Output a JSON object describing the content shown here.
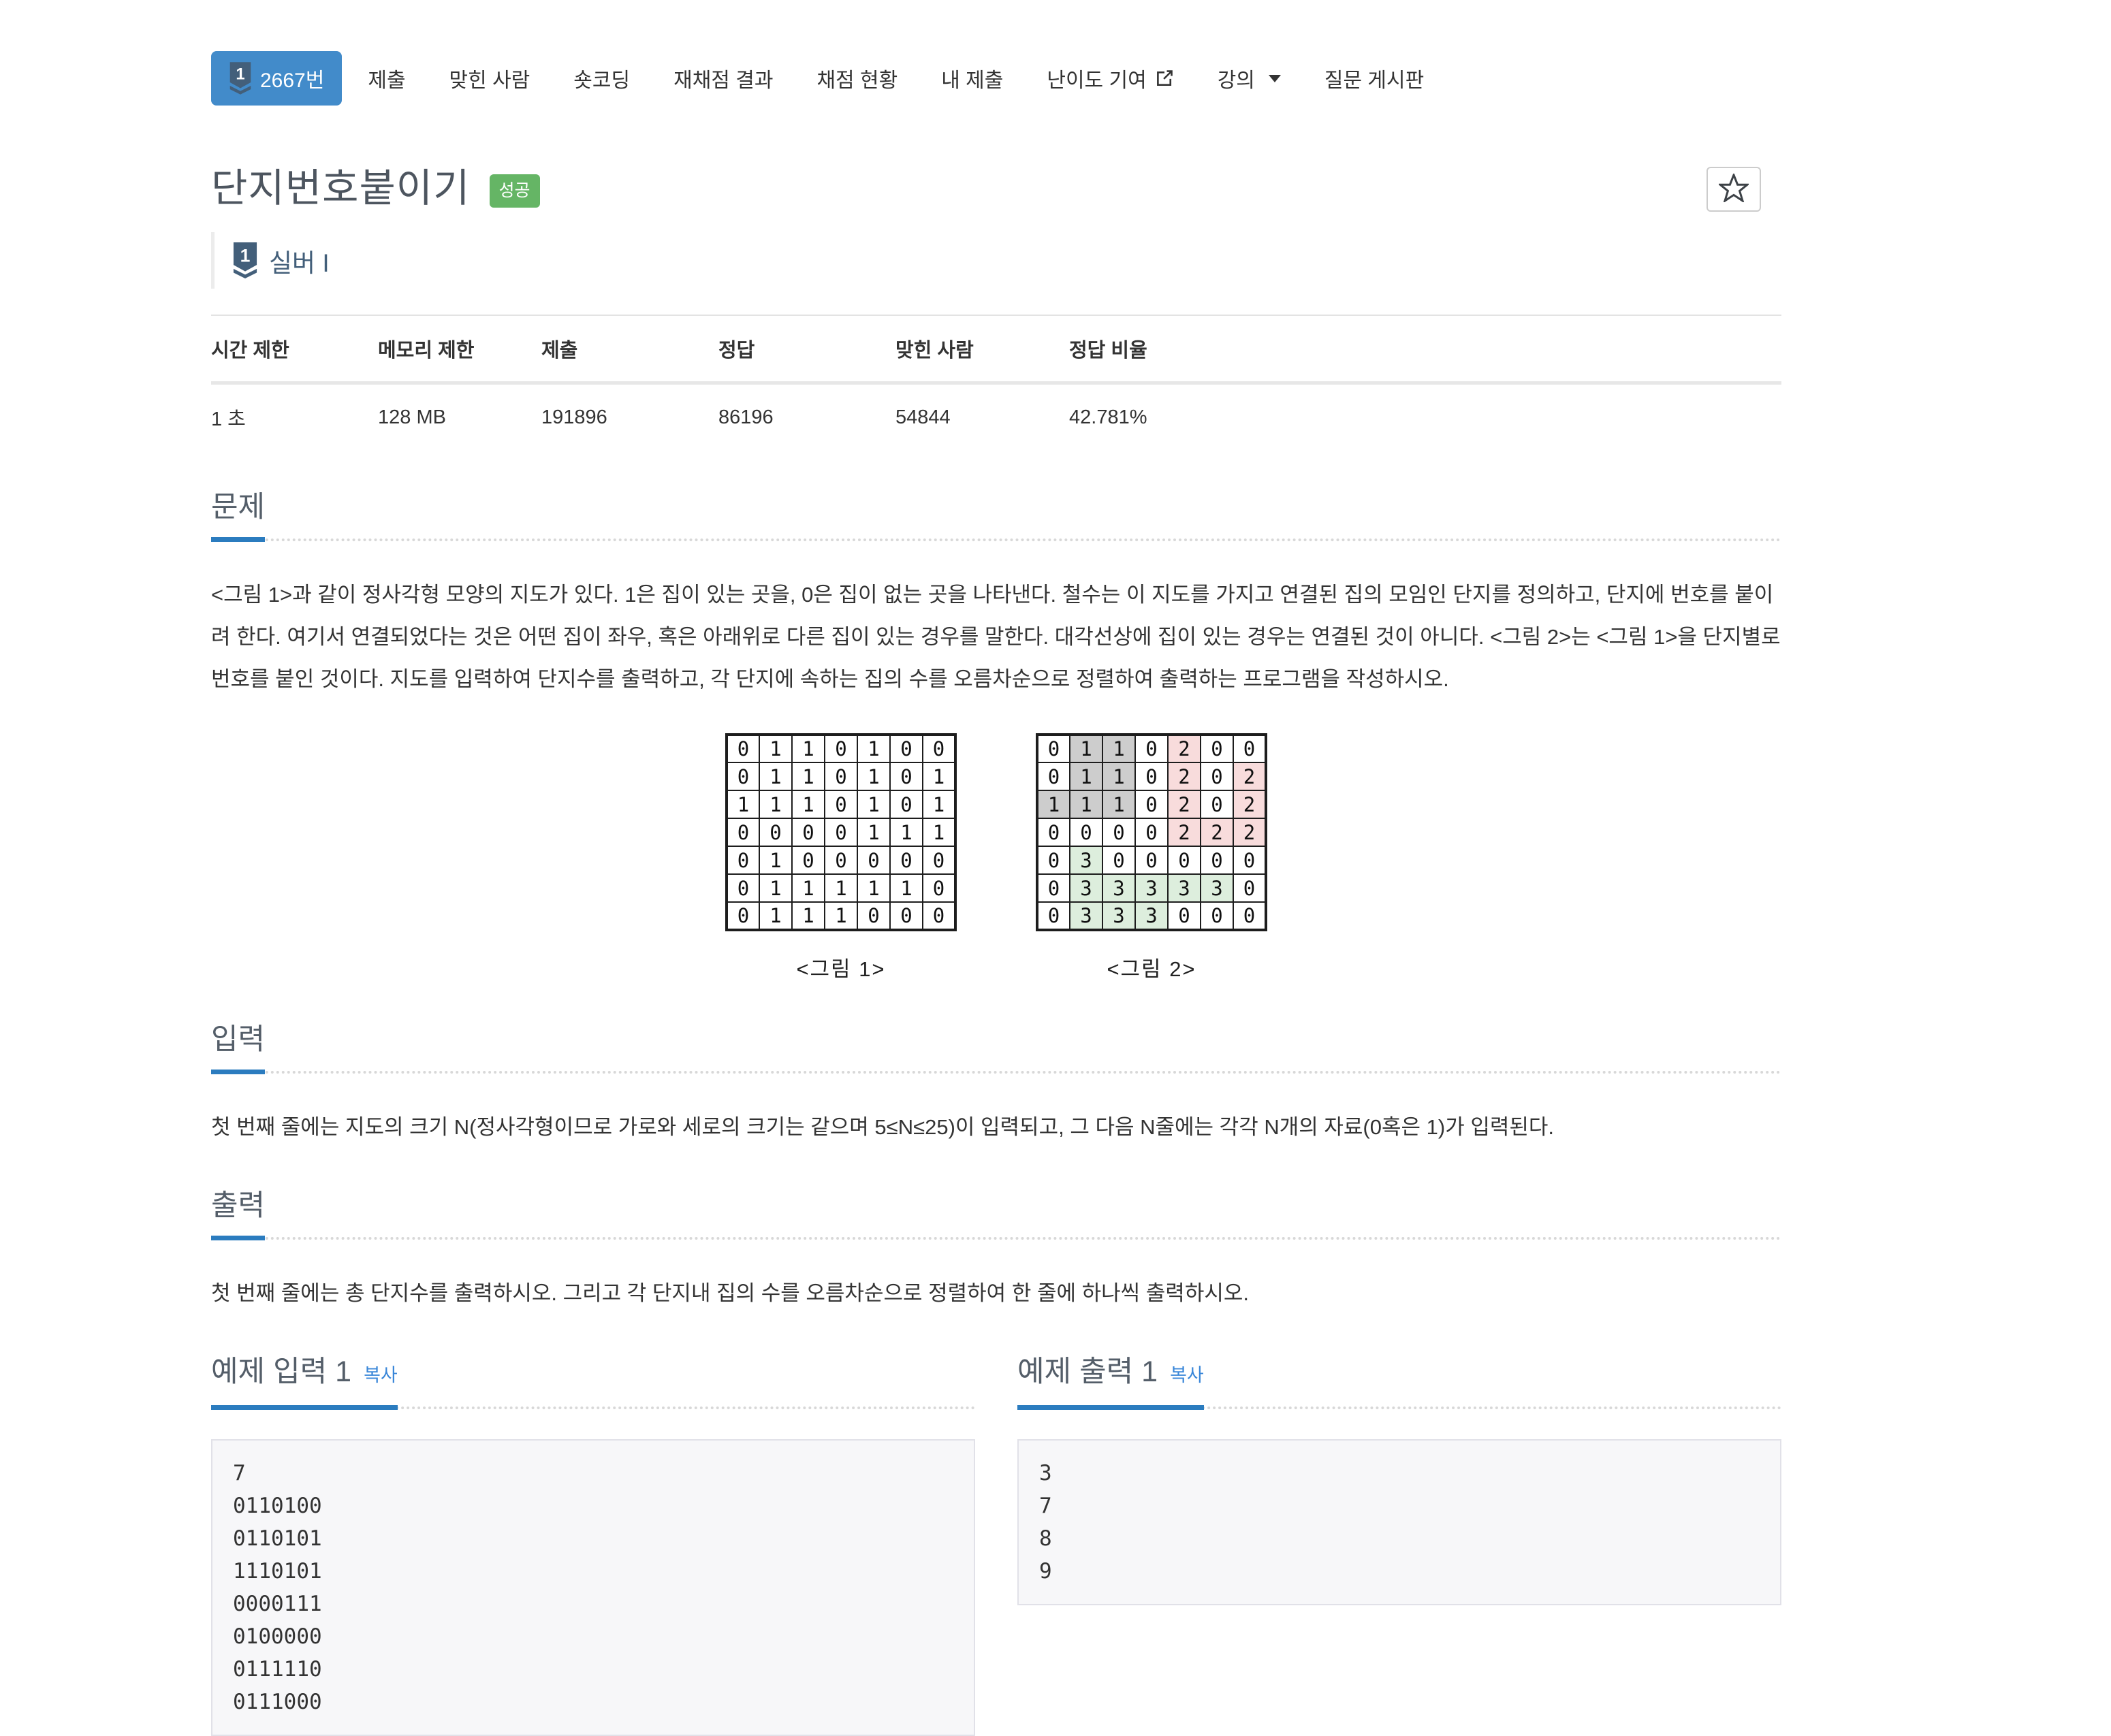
{
  "colors": {
    "active_tab_bg": "#428bca",
    "headline_underline": "#2b7cbf",
    "link_blue": "#3a87d9",
    "success_green": "#65b565",
    "tier_silver": "#435f7a",
    "grid_group_1": "#cdcdcd",
    "grid_group_2": "#f8dcdc",
    "grid_group_3": "#ddeedd"
  },
  "nav": {
    "items": [
      {
        "id": "problem",
        "label": "2667번",
        "active": true,
        "tier_icon": true
      },
      {
        "id": "submit",
        "label": "제출"
      },
      {
        "id": "solved-users",
        "label": "맞힌 사람"
      },
      {
        "id": "short-coding",
        "label": "숏코딩"
      },
      {
        "id": "rejudge-result",
        "label": "재채점 결과"
      },
      {
        "id": "judge-status",
        "label": "채점 현황"
      },
      {
        "id": "my-submissions",
        "label": "내 제출"
      },
      {
        "id": "difficulty-vote",
        "label": "난이도 기여",
        "external_icon": true
      },
      {
        "id": "lecture",
        "label": "강의",
        "caret": true
      },
      {
        "id": "qna-board",
        "label": "질문 게시판"
      }
    ]
  },
  "header": {
    "title": "단지번호붙이기",
    "status_badge": "성공",
    "tier": {
      "level": "1",
      "name": "실버 I"
    }
  },
  "info_table": {
    "headers": [
      "시간 제한",
      "메모리 제한",
      "제출",
      "정답",
      "맞힌 사람",
      "정답 비율"
    ],
    "values": [
      "1 초",
      "128 MB",
      "191896",
      "86196",
      "54844",
      "42.781%"
    ]
  },
  "sections": {
    "problem": {
      "heading": "문제",
      "body": "<그림 1>과 같이 정사각형 모양의 지도가 있다. 1은 집이 있는 곳을, 0은 집이 없는 곳을 나타낸다. 철수는 이 지도를 가지고 연결된 집의 모임인 단지를 정의하고, 단지에 번호를 붙이려 한다. 여기서 연결되었다는 것은 어떤 집이 좌우, 혹은 아래위로 다른 집이 있는 경우를 말한다. 대각선상에 집이 있는 경우는 연결된 것이 아니다. <그림 2>는 <그림 1>을 단지별로 번호를 붙인 것이다. 지도를 입력하여 단지수를 출력하고, 각 단지에 속하는 집의 수를 오름차순으로 정렬하여 출력하는 프로그램을 작성하시오."
    },
    "input": {
      "heading": "입력",
      "body": "첫 번째 줄에는 지도의 크기 N(정사각형이므로 가로와 세로의 크기는 같으며 5≤N≤25)이 입력되고, 그 다음 N줄에는 각각 N개의 자료(0혹은 1)가 입력된다."
    },
    "output": {
      "heading": "출력",
      "body": "첫 번째 줄에는 총 단지수를 출력하시오. 그리고 각 단지내 집의 수를 오름차순으로 정렬하여 한 줄에 하나씩 출력하시오."
    }
  },
  "figures": [
    {
      "caption": "<그림 1>",
      "grid": [
        [
          0,
          1,
          1,
          0,
          1,
          0,
          0
        ],
        [
          0,
          1,
          1,
          0,
          1,
          0,
          1
        ],
        [
          1,
          1,
          1,
          0,
          1,
          0,
          1
        ],
        [
          0,
          0,
          0,
          0,
          1,
          1,
          1
        ],
        [
          0,
          1,
          0,
          0,
          0,
          0,
          0
        ],
        [
          0,
          1,
          1,
          1,
          1,
          1,
          0
        ],
        [
          0,
          1,
          1,
          1,
          0,
          0,
          0
        ]
      ],
      "color_map": {}
    },
    {
      "caption": "<그림 2>",
      "grid": [
        [
          0,
          1,
          1,
          0,
          2,
          0,
          0
        ],
        [
          0,
          1,
          1,
          0,
          2,
          0,
          2
        ],
        [
          1,
          1,
          1,
          0,
          2,
          0,
          2
        ],
        [
          0,
          0,
          0,
          0,
          2,
          2,
          2
        ],
        [
          0,
          3,
          0,
          0,
          0,
          0,
          0
        ],
        [
          0,
          3,
          3,
          3,
          3,
          3,
          0
        ],
        [
          0,
          3,
          3,
          3,
          0,
          0,
          0
        ]
      ],
      "color_map": {
        "1": "#cdcdcd",
        "2": "#f8dcdc",
        "3": "#ddeedd"
      }
    }
  ],
  "samples": {
    "input": {
      "heading": "예제 입력 1",
      "copy_label": "복사",
      "lines": [
        "7",
        "0110100",
        "0110101",
        "1110101",
        "0000111",
        "0100000",
        "0111110",
        "0111000"
      ]
    },
    "output": {
      "heading": "예제 출력 1",
      "copy_label": "복사",
      "lines": [
        "3",
        "7",
        "8",
        "9"
      ]
    }
  }
}
